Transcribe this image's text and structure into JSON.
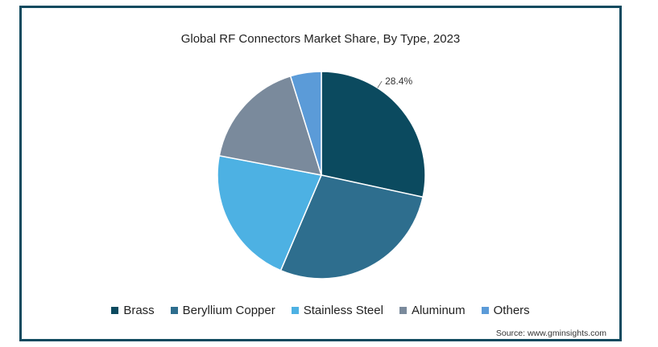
{
  "chart_data": {
    "type": "pie",
    "title": "Global RF Connectors Market Share, By Type, 2023",
    "slices": [
      {
        "name": "Brass",
        "value": 28.4,
        "color": "#0b4a5f",
        "label": "28.4%"
      },
      {
        "name": "Beryllium Copper",
        "value": 28.0,
        "color": "#2e6e8e",
        "label": ""
      },
      {
        "name": "Stainless Steel",
        "value": 21.6,
        "color": "#4db1e3",
        "label": ""
      },
      {
        "name": "Aluminum",
        "value": 17.2,
        "color": "#7a8a9c",
        "label": ""
      },
      {
        "name": "Others",
        "value": 4.8,
        "color": "#5b9bd8",
        "label": ""
      }
    ],
    "legend_position": "bottom"
  },
  "source": "Source: www.gminsights.com"
}
